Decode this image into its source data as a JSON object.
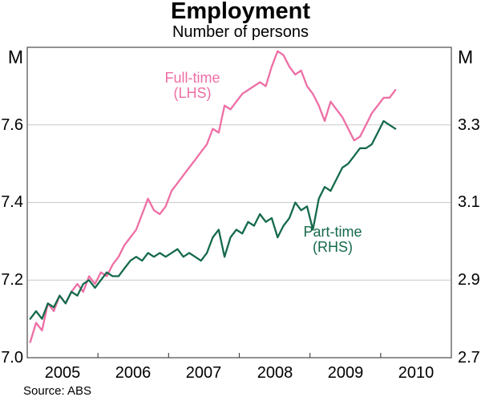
{
  "title": "Employment",
  "subtitle": "Number of persons",
  "source_note": "Source: ABS",
  "axes": {
    "left_unit": "M",
    "right_unit": "M",
    "left_ticks": [
      "7.6",
      "7.4",
      "7.2",
      "7.0"
    ],
    "right_ticks": [
      "3.3",
      "3.1",
      "2.9",
      "2.7"
    ],
    "years": [
      "2005",
      "2006",
      "2007",
      "2008",
      "2009",
      "2010"
    ]
  },
  "labels": {
    "full_time": {
      "line1": "Full-time",
      "line2": "(LHS)"
    },
    "part_time": {
      "line1": "Part-time",
      "line2": "(RHS)"
    }
  },
  "colors": {
    "full_time": "#ee6ea5",
    "part_time": "#156a4a",
    "grid": "#c9c9c9",
    "frame": "#4a4a4a",
    "text": "#000000"
  },
  "chart_data": {
    "type": "line",
    "title": "Employment",
    "subtitle": "Number of persons",
    "frequency": "monthly",
    "x_start": "Jul 2004",
    "x_end": "Sep 2009",
    "x_axis_span_years": [
      "mid-2004",
      "mid-2010"
    ],
    "x_year_tick_labels": [
      "2005",
      "2006",
      "2007",
      "2008",
      "2009",
      "2010"
    ],
    "left_axis": {
      "unit": "M",
      "min": 7.0,
      "max": 7.8,
      "tick_labels": [
        7.0,
        7.2,
        7.4,
        7.6
      ],
      "gridlines": [
        7.2,
        7.4,
        7.6
      ]
    },
    "right_axis": {
      "unit": "M",
      "min": 2.7,
      "max": 3.5,
      "tick_labels": [
        2.7,
        2.9,
        3.1,
        3.3
      ],
      "gridlines": [
        2.9,
        3.1,
        3.3
      ]
    },
    "series": [
      {
        "name": "Full-time",
        "axis": "left",
        "label": "Full-time (LHS)",
        "values": [
          7.04,
          7.09,
          7.07,
          7.14,
          7.12,
          7.16,
          7.14,
          7.17,
          7.19,
          7.17,
          7.21,
          7.19,
          7.22,
          7.21,
          7.24,
          7.26,
          7.29,
          7.31,
          7.33,
          7.37,
          7.41,
          7.38,
          7.37,
          7.39,
          7.43,
          7.45,
          7.47,
          7.49,
          7.51,
          7.53,
          7.55,
          7.59,
          7.58,
          7.65,
          7.64,
          7.66,
          7.68,
          7.69,
          7.7,
          7.71,
          7.7,
          7.75,
          7.79,
          7.78,
          7.75,
          7.73,
          7.74,
          7.7,
          7.68,
          7.65,
          7.61,
          7.66,
          7.64,
          7.62,
          7.59,
          7.56,
          7.57,
          7.6,
          7.63,
          7.65,
          7.67,
          7.67,
          7.69
        ]
      },
      {
        "name": "Part-time",
        "axis": "right",
        "label": "Part-time (RHS)",
        "values": [
          2.8,
          2.82,
          2.8,
          2.84,
          2.83,
          2.86,
          2.84,
          2.87,
          2.86,
          2.89,
          2.9,
          2.88,
          2.9,
          2.92,
          2.91,
          2.91,
          2.93,
          2.95,
          2.96,
          2.95,
          2.97,
          2.96,
          2.97,
          2.96,
          2.97,
          2.98,
          2.96,
          2.97,
          2.96,
          2.95,
          2.97,
          3.01,
          3.03,
          2.96,
          3.01,
          3.03,
          3.02,
          3.05,
          3.04,
          3.07,
          3.05,
          3.06,
          3.01,
          3.04,
          3.06,
          3.1,
          3.08,
          3.09,
          3.03,
          3.11,
          3.14,
          3.13,
          3.16,
          3.19,
          3.2,
          3.22,
          3.24,
          3.24,
          3.25,
          3.28,
          3.31,
          3.3,
          3.29
        ]
      }
    ],
    "grid": true,
    "legend_position": "inline-annotations"
  }
}
